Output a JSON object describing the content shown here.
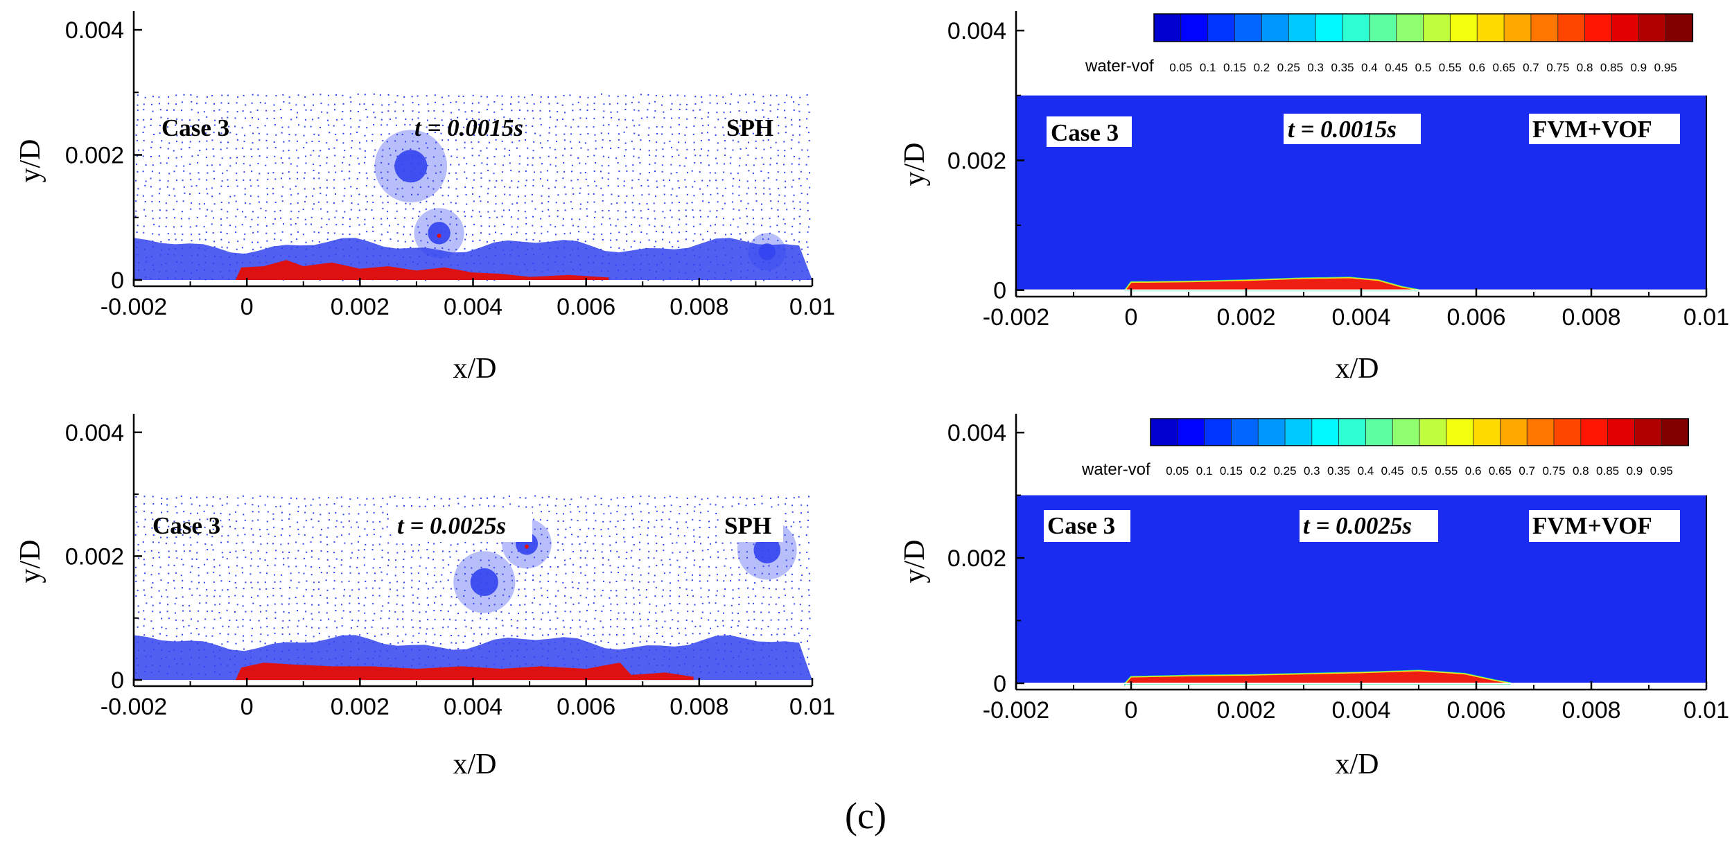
{
  "figure_label": "(c)",
  "colorbar_label": "water-vof",
  "colorbar_ticks": [
    "0.05",
    "0.1",
    "0.15",
    "0.2",
    "0.25",
    "0.3",
    "0.35",
    "0.4",
    "0.45",
    "0.5",
    "0.55",
    "0.6",
    "0.65",
    "0.7",
    "0.75",
    "0.8",
    "0.85",
    "0.9",
    "0.95"
  ],
  "colors": {
    "background": "#ffffff",
    "sph_particles": "#3344ee",
    "sph_sediment": "#dd1111",
    "vof_water": "#1a2cf0",
    "vof_sediment": "#ee1f12",
    "vof_interface": "#19e0a0"
  },
  "chart_data": [
    {
      "type": "scatter",
      "method": "SPH",
      "case": "Case 3",
      "time": "t = 0.0015s",
      "xlabel": "x/D",
      "ylabel": "y/D",
      "xlim": [
        -0.002,
        0.01
      ],
      "ylim": [
        -0.0001,
        0.0043
      ],
      "xticks": [
        "-0.002",
        "0",
        "0.002",
        "0.004",
        "0.006",
        "0.008",
        "0.01"
      ],
      "yticks": [
        "0",
        "0.002",
        "0.004"
      ],
      "xtick_values": [
        -0.002,
        0,
        0.002,
        0.004,
        0.006,
        0.008,
        0.01
      ],
      "ytick_values": [
        0,
        0.002,
        0.004
      ],
      "domain_x": [
        -0.002,
        0.01
      ],
      "domain_top": 0.003,
      "bubbles": [
        [
          0.0029,
          0.00182,
          0.00058
        ],
        [
          0.0034,
          0.00075,
          0.0004
        ],
        [
          0.0092,
          0.00045,
          0.0003
        ]
      ],
      "dense_layer_height": 0.00055,
      "sediment": [
        [
          -0.0002,
          0.0
        ],
        [
          -0.0001,
          0.0002
        ],
        [
          0.0003,
          0.00022
        ],
        [
          0.0007,
          0.00032
        ],
        [
          0.001,
          0.00022
        ],
        [
          0.0015,
          0.00028
        ],
        [
          0.002,
          0.00018
        ],
        [
          0.0025,
          0.00022
        ],
        [
          0.003,
          0.00015
        ],
        [
          0.0035,
          0.0002
        ],
        [
          0.004,
          0.00012
        ],
        [
          0.0045,
          0.0001
        ],
        [
          0.005,
          5e-05
        ],
        [
          0.0057,
          8e-05
        ],
        [
          0.0064,
          4e-05
        ],
        [
          0.0064,
          0.0
        ]
      ]
    },
    {
      "type": "heatmap",
      "method": "FVM+VOF",
      "case": "Case 3",
      "time": "t = 0.0015s",
      "xlabel": "x/D",
      "ylabel": "y/D",
      "xlim": [
        -0.002,
        0.01
      ],
      "ylim": [
        -0.0001,
        0.0043
      ],
      "xticks": [
        "-0.002",
        "0",
        "0.002",
        "0.004",
        "0.006",
        "0.008",
        "0.01"
      ],
      "yticks": [
        "0",
        "0.002",
        "0.004"
      ],
      "xtick_values": [
        -0.002,
        0,
        0.002,
        0.004,
        0.006,
        0.008,
        0.01
      ],
      "ytick_values": [
        0,
        0.002,
        0.004
      ],
      "domain_x": [
        -0.002,
        0.01
      ],
      "domain_top": 0.003,
      "sediment": [
        [
          -0.0001,
          0.0
        ],
        [
          0.0,
          0.00012
        ],
        [
          0.001,
          0.00013
        ],
        [
          0.002,
          0.00015
        ],
        [
          0.003,
          0.00018
        ],
        [
          0.0038,
          0.00019
        ],
        [
          0.0043,
          0.00015
        ],
        [
          0.0047,
          5e-05
        ],
        [
          0.005,
          0.0
        ]
      ]
    },
    {
      "type": "scatter",
      "method": "SPH",
      "case": "Case 3",
      "time": "t = 0.0025s",
      "xlabel": "x/D",
      "ylabel": "y/D",
      "xlim": [
        -0.002,
        0.01
      ],
      "ylim": [
        -0.0001,
        0.0043
      ],
      "xticks": [
        "-0.002",
        "0",
        "0.002",
        "0.004",
        "0.006",
        "0.008",
        "0.01"
      ],
      "yticks": [
        "0",
        "0.002",
        "0.004"
      ],
      "xtick_values": [
        -0.002,
        0,
        0.002,
        0.004,
        0.006,
        0.008,
        0.01
      ],
      "ytick_values": [
        0,
        0.002,
        0.004
      ],
      "domain_x": [
        -0.002,
        0.01
      ],
      "domain_top": 0.003,
      "bubbles": [
        [
          0.0042,
          0.00158,
          0.0005
        ],
        [
          0.00495,
          0.0022,
          0.0004
        ],
        [
          0.0092,
          0.0021,
          0.00048
        ]
      ],
      "dense_layer_height": 0.0006,
      "sediment": [
        [
          -0.0002,
          0.0
        ],
        [
          -0.0001,
          0.0002
        ],
        [
          0.0003,
          0.00028
        ],
        [
          0.0008,
          0.00025
        ],
        [
          0.0015,
          0.00022
        ],
        [
          0.0022,
          0.00022
        ],
        [
          0.003,
          0.00018
        ],
        [
          0.0038,
          0.00022
        ],
        [
          0.0045,
          0.00018
        ],
        [
          0.0052,
          0.00022
        ],
        [
          0.006,
          0.00018
        ],
        [
          0.0066,
          0.00028
        ],
        [
          0.0068,
          8e-05
        ],
        [
          0.0074,
          0.00012
        ],
        [
          0.0079,
          5e-05
        ],
        [
          0.0079,
          0.0
        ]
      ]
    },
    {
      "type": "heatmap",
      "method": "FVM+VOF",
      "case": "Case 3",
      "time": "t = 0.0025s",
      "xlabel": "x/D",
      "ylabel": "y/D",
      "xlim": [
        -0.002,
        0.01
      ],
      "ylim": [
        -0.0001,
        0.0043
      ],
      "xticks": [
        "-0.002",
        "0",
        "0.002",
        "0.004",
        "0.006",
        "0.008",
        "0.01"
      ],
      "yticks": [
        "0",
        "0.002",
        "0.004"
      ],
      "xtick_values": [
        -0.002,
        0,
        0.002,
        0.004,
        0.006,
        0.008,
        0.01
      ],
      "ytick_values": [
        0,
        0.002,
        0.004
      ],
      "domain_x": [
        -0.002,
        0.01
      ],
      "domain_top": 0.003,
      "sediment": [
        [
          -0.0001,
          0.0
        ],
        [
          0.0,
          0.0001
        ],
        [
          0.001,
          0.00012
        ],
        [
          0.002,
          0.00013
        ],
        [
          0.003,
          0.00015
        ],
        [
          0.004,
          0.00017
        ],
        [
          0.005,
          0.0002
        ],
        [
          0.0058,
          0.00015
        ],
        [
          0.0063,
          5e-05
        ],
        [
          0.0066,
          0.0
        ]
      ]
    }
  ]
}
